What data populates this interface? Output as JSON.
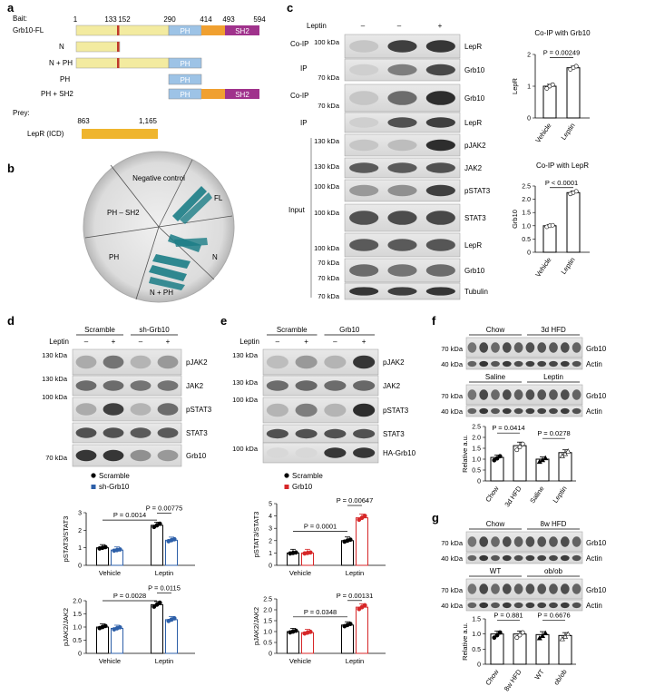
{
  "panel_labels": {
    "a": "a",
    "b": "b",
    "c": "c",
    "d": "d",
    "e": "e",
    "f": "f",
    "g": "g"
  },
  "panel_a": {
    "bait_label": "Bait:",
    "prey_label": "Prey:",
    "positions": [
      "1",
      "133",
      "152",
      "290",
      "414",
      "493",
      "594"
    ],
    "rows": [
      {
        "label": "Grb10-FL",
        "ph": "PH",
        "sh2": "SH2"
      },
      {
        "label": "N"
      },
      {
        "label": "N + PH",
        "ph": "PH"
      },
      {
        "label": "PH",
        "ph": "PH"
      },
      {
        "label": "PH + SH2",
        "ph": "PH",
        "sh2": "SH2"
      }
    ],
    "prey_positions": [
      "863",
      "1,165"
    ],
    "prey_row_label": "LepR (ICD)",
    "colors": {
      "n_domain": "#f3eba0",
      "ph": "#9dc3e6",
      "linker": "#f0a030",
      "sh2": "#a0328c",
      "lepr": "#efb52e",
      "marker": "#c0392b"
    }
  },
  "panel_b": {
    "sectors": [
      "Negative control",
      "FL",
      "N",
      "N + PH",
      "PH",
      "PH – SH2"
    ]
  },
  "panel_c": {
    "leptin_label": "Leptin",
    "leptin_states": [
      "–",
      "–",
      "+"
    ],
    "group_labels": [
      "Co-IP",
      "IP",
      "Co-IP",
      "IP",
      "Input"
    ],
    "mw_labels": [
      "100 kDa",
      "70 kDa",
      "70 kDa",
      "100 kDa",
      "130 kDa",
      "130 kDa",
      "100 kDa",
      "100 kDa",
      "100 kDa",
      "70 kDa",
      "70 kDa"
    ],
    "band_labels": [
      "LepR",
      "Grb10",
      "Grb10",
      "LepR",
      "pJAK2",
      "JAK2",
      "pSTAT3",
      "STAT3",
      "LepR",
      "Grb10",
      "Tubulin"
    ],
    "chart1": {
      "title": "Co-IP with Grb10",
      "pval": "P = 0.00249",
      "ylabel": "LepR",
      "categories": [
        "Vehicle",
        "Leptin"
      ],
      "values": [
        1.0,
        1.58
      ],
      "errors": [
        0.06,
        0.05
      ],
      "points": [
        [
          0.93,
          1.0,
          1.05
        ],
        [
          1.53,
          1.58,
          1.63
        ]
      ],
      "ylim": [
        0,
        2
      ],
      "ticks": [
        "0",
        "1",
        "2"
      ]
    },
    "chart2": {
      "title": "Co-IP with LepR",
      "pval": "P < 0.0001",
      "ylabel": "Grb10",
      "categories": [
        "Vehicle",
        "Leptin"
      ],
      "values": [
        1.0,
        2.25
      ],
      "errors": [
        0.04,
        0.06
      ],
      "points": [
        [
          0.96,
          1.0,
          1.02
        ],
        [
          2.2,
          2.25,
          2.3
        ]
      ],
      "ylim": [
        0,
        2.5
      ],
      "ticks": [
        "0",
        "0.5",
        "1.0",
        "1.5",
        "2.0",
        "2.5"
      ]
    }
  },
  "panel_d": {
    "groups": [
      "Scramble",
      "sh-Grb10"
    ],
    "leptin_label": "Leptin",
    "leptin_states": [
      "–",
      "+",
      "–",
      "+"
    ],
    "mw_labels": [
      "130 kDa",
      "130 kDa",
      "100 kDa",
      "70 kDa"
    ],
    "band_labels": [
      "pJAK2",
      "JAK2",
      "pSTAT3",
      "STAT3",
      "Grb10"
    ],
    "legend": [
      "Scramble",
      "sh-Grb10"
    ],
    "chart1": {
      "ylabel": "pSTAT3/STAT3",
      "p_a": "P = 0.0014",
      "p_b": "P = 0.00775",
      "categories": [
        "Vehicle",
        "Leptin"
      ],
      "series": [
        {
          "name": "Scramble",
          "values": [
            1.0,
            2.28
          ]
        },
        {
          "name": "sh-Grb10",
          "values": [
            0.87,
            1.43
          ]
        }
      ],
      "ylim": [
        0,
        3
      ],
      "ticks": [
        "0",
        "1",
        "2",
        "3"
      ]
    },
    "chart2": {
      "ylabel": "pJAK2/JAK2",
      "p_a": "P = 0.0028",
      "p_b": "P = 0.0115",
      "categories": [
        "Vehicle",
        "Leptin"
      ],
      "series": [
        {
          "name": "Scramble",
          "values": [
            1.0,
            1.85
          ]
        },
        {
          "name": "sh-Grb10",
          "values": [
            0.95,
            1.28
          ]
        }
      ],
      "ylim": [
        0,
        2
      ],
      "ticks": [
        "0",
        "0.5",
        "1.0",
        "1.5",
        "2.0"
      ]
    }
  },
  "panel_e": {
    "groups": [
      "Scramble",
      "Grb10"
    ],
    "leptin_label": "Leptin",
    "leptin_states": [
      "–",
      "+",
      "–",
      "+"
    ],
    "mw_labels": [
      "130 kDa",
      "130 kDa",
      "100 kDa",
      "100 kDa"
    ],
    "band_labels": [
      "pJAK2",
      "JAK2",
      "pSTAT3",
      "STAT3",
      "HA-Grb10"
    ],
    "legend": [
      "Scramble",
      "Grb10"
    ],
    "chart1": {
      "ylabel": "pSTAT3/STAT3",
      "p_a": "P = 0.0001",
      "p_b": "P = 0.00647",
      "categories": [
        "Vehicle",
        "Leptin"
      ],
      "series": [
        {
          "name": "Scramble",
          "values": [
            1.0,
            2.0
          ]
        },
        {
          "name": "Grb10",
          "values": [
            1.0,
            3.85
          ]
        }
      ],
      "ylim": [
        0,
        5
      ],
      "ticks": [
        "0",
        "1",
        "2",
        "3",
        "4",
        "5"
      ]
    },
    "chart2": {
      "ylabel": "pJAK2/JAK2",
      "p_a": "P = 0.0348",
      "p_b": "P = 0.00131",
      "categories": [
        "Vehicle",
        "Leptin"
      ],
      "series": [
        {
          "name": "Scramble",
          "values": [
            1.0,
            1.3
          ]
        },
        {
          "name": "Grb10",
          "values": [
            0.95,
            2.12
          ]
        }
      ],
      "ylim": [
        0,
        2.5
      ],
      "ticks": [
        "0",
        "0.5",
        "1.0",
        "1.5",
        "2.0",
        "2.5"
      ]
    }
  },
  "panel_f": {
    "groups1": [
      "Chow",
      "3d HFD"
    ],
    "groups2": [
      "Saline",
      "Leptin"
    ],
    "mw_labels": [
      "70 kDa",
      "40 kDa",
      "70 kDa",
      "40 kDa"
    ],
    "band_labels": [
      "Grb10",
      "Actin",
      "Grb10",
      "Actin"
    ],
    "chart": {
      "ylabel": "Relative a.u.",
      "p_a": "P = 0.0414",
      "p_b": "P = 0.0278",
      "categories": [
        "Chow",
        "3d HFD",
        "Saline",
        "Leptin"
      ],
      "values": [
        1.08,
        1.62,
        1.0,
        1.3
      ],
      "ylim": [
        0,
        2.5
      ],
      "ticks": [
        "0",
        "0.5",
        "1.0",
        "1.5",
        "2.0",
        "2.5"
      ]
    }
  },
  "panel_g": {
    "groups1": [
      "Chow",
      "8w HFD"
    ],
    "groups2": [
      "WT",
      "ob/ob"
    ],
    "mw_labels": [
      "70 kDa",
      "40 kDa",
      "70 kDa",
      "40 kDa"
    ],
    "band_labels": [
      "Grb10",
      "Actin",
      "Grb10",
      "Actin"
    ],
    "chart": {
      "ylabel": "Relative a.u.",
      "p_a": "P = 0.881",
      "p_b": "P = 0.6676",
      "categories": [
        "Chow",
        "8w HFD",
        "WT",
        "ob/ob"
      ],
      "values": [
        1.0,
        1.0,
        0.98,
        0.95
      ],
      "ylim": [
        0,
        1.5
      ],
      "ticks": [
        "0",
        "0.5",
        "1.0",
        "1.5"
      ]
    }
  },
  "chart_data": [
    {
      "type": "bar",
      "title": "Co-IP with Grb10",
      "categories": [
        "Vehicle",
        "Leptin"
      ],
      "values": [
        1.0,
        1.58
      ],
      "ylabel": "LepR",
      "ylim": [
        0,
        2
      ]
    },
    {
      "type": "bar",
      "title": "Co-IP with LepR",
      "categories": [
        "Vehicle",
        "Leptin"
      ],
      "values": [
        1.0,
        2.25
      ],
      "ylabel": "Grb10",
      "ylim": [
        0,
        2.5
      ]
    },
    {
      "type": "bar",
      "categories": [
        "Vehicle",
        "Leptin"
      ],
      "series": [
        {
          "name": "Scramble",
          "values": [
            1.0,
            2.28
          ]
        },
        {
          "name": "sh-Grb10",
          "values": [
            0.87,
            1.43
          ]
        }
      ],
      "ylabel": "pSTAT3/STAT3",
      "ylim": [
        0,
        3
      ]
    },
    {
      "type": "bar",
      "categories": [
        "Vehicle",
        "Leptin"
      ],
      "series": [
        {
          "name": "Scramble",
          "values": [
            1.0,
            1.85
          ]
        },
        {
          "name": "sh-Grb10",
          "values": [
            0.95,
            1.28
          ]
        }
      ],
      "ylabel": "pJAK2/JAK2",
      "ylim": [
        0,
        2
      ]
    },
    {
      "type": "bar",
      "categories": [
        "Vehicle",
        "Leptin"
      ],
      "series": [
        {
          "name": "Scramble",
          "values": [
            1.0,
            2.0
          ]
        },
        {
          "name": "Grb10",
          "values": [
            1.0,
            3.85
          ]
        }
      ],
      "ylabel": "pSTAT3/STAT3",
      "ylim": [
        0,
        5
      ]
    },
    {
      "type": "bar",
      "categories": [
        "Vehicle",
        "Leptin"
      ],
      "series": [
        {
          "name": "Scramble",
          "values": [
            1.0,
            1.3
          ]
        },
        {
          "name": "Grb10",
          "values": [
            0.95,
            2.12
          ]
        }
      ],
      "ylabel": "pJAK2/JAK2",
      "ylim": [
        0,
        2.5
      ]
    },
    {
      "type": "bar",
      "categories": [
        "Chow",
        "3d HFD",
        "Saline",
        "Leptin"
      ],
      "values": [
        1.08,
        1.62,
        1.0,
        1.3
      ],
      "ylabel": "Relative a.u.",
      "ylim": [
        0,
        2.5
      ]
    },
    {
      "type": "bar",
      "categories": [
        "Chow",
        "8w HFD",
        "WT",
        "ob/ob"
      ],
      "values": [
        1.0,
        1.0,
        0.98,
        0.95
      ],
      "ylabel": "Relative a.u.",
      "ylim": [
        0,
        1.5
      ]
    }
  ]
}
